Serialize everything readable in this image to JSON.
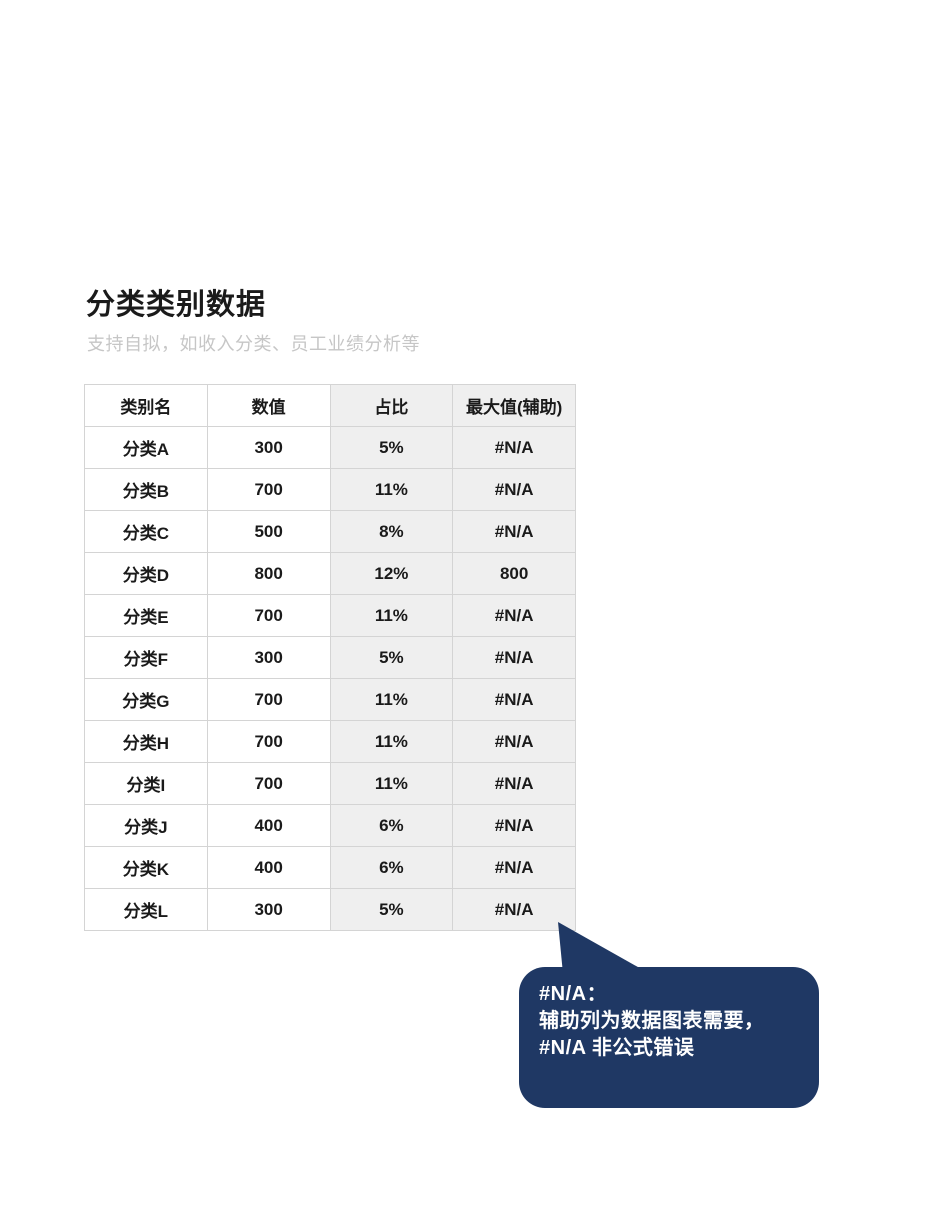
{
  "page": {
    "title": "分类类别数据",
    "subtitle": "支持自拟，如收入分类、员工业绩分析等"
  },
  "table": {
    "columns": [
      "类别名",
      "数值",
      "占比",
      "最大值(辅助)"
    ],
    "shaded_column_indexes": [
      2,
      3
    ],
    "rows": [
      [
        "分类A",
        "300",
        "5%",
        "#N/A"
      ],
      [
        "分类B",
        "700",
        "11%",
        "#N/A"
      ],
      [
        "分类C",
        "500",
        "8%",
        "#N/A"
      ],
      [
        "分类D",
        "800",
        "12%",
        "800"
      ],
      [
        "分类E",
        "700",
        "11%",
        "#N/A"
      ],
      [
        "分类F",
        "300",
        "5%",
        "#N/A"
      ],
      [
        "分类G",
        "700",
        "11%",
        "#N/A"
      ],
      [
        "分类H",
        "700",
        "11%",
        "#N/A"
      ],
      [
        "分类I",
        "700",
        "11%",
        "#N/A"
      ],
      [
        "分类J",
        "400",
        "6%",
        "#N/A"
      ],
      [
        "分类K",
        "400",
        "6%",
        "#N/A"
      ],
      [
        "分类L",
        "300",
        "5%",
        "#N/A"
      ]
    ]
  },
  "callout": {
    "lines": [
      "#N/A：",
      "辅助列为数据图表需要，",
      "#N/A 非公式错误"
    ],
    "bg_color": "#1f3864",
    "text_color": "#ffffff"
  },
  "colors": {
    "title_text": "#1a1a1a",
    "subtitle_text": "#c6c6c6",
    "table_border": "#d4d4d4",
    "shaded_cell_bg": "#efefef",
    "callout_bg": "#1f3864"
  }
}
